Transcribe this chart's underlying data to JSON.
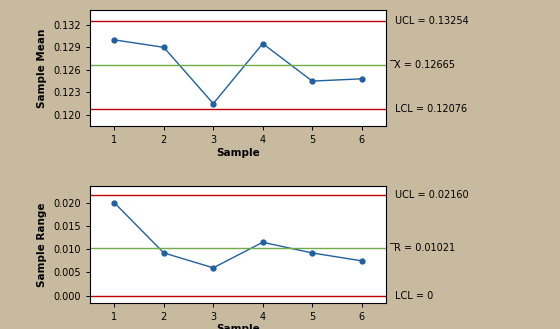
{
  "samples": [
    1,
    2,
    3,
    4,
    5,
    6
  ],
  "xbar_values": [
    0.13,
    0.129,
    0.1215,
    0.1295,
    0.1245,
    0.1248
  ],
  "rbar_values": [
    0.02,
    0.0092,
    0.006,
    0.0115,
    0.0092,
    0.0075
  ],
  "xbar_UCL": 0.13254,
  "xbar_CL": 0.12665,
  "xbar_LCL": 0.12076,
  "rbar_UCL": 0.0216,
  "rbar_CL": 0.01021,
  "rbar_LCL": 0,
  "xbar_UCL_label": "UCL = 0.13254",
  "xbar_CL_label": "̅̅X = 0.12665",
  "xbar_LCL_label": "LCL = 0.12076",
  "rbar_UCL_label": "UCL = 0.02160",
  "rbar_CL_label": "̅R = 0.01021",
  "rbar_LCL_label": "LCL = 0",
  "xbar_ylabel": "Sample Mean",
  "rbar_ylabel": "Sample Range",
  "xlabel": "Sample",
  "line_color": "#2060A0",
  "UCL_color": "#C00000",
  "CL_color": "#70AD47",
  "LCL_color": "#C00000",
  "bg_color": "#C8BA9E",
  "plot_bg_color": "#FFFFFF",
  "xbar_ylim": [
    0.1185,
    0.134
  ],
  "rbar_ylim": [
    -0.0015,
    0.0235
  ],
  "xbar_yticks": [
    0.12,
    0.123,
    0.126,
    0.129,
    0.132
  ],
  "rbar_yticks": [
    0.0,
    0.005,
    0.01,
    0.015,
    0.02
  ]
}
